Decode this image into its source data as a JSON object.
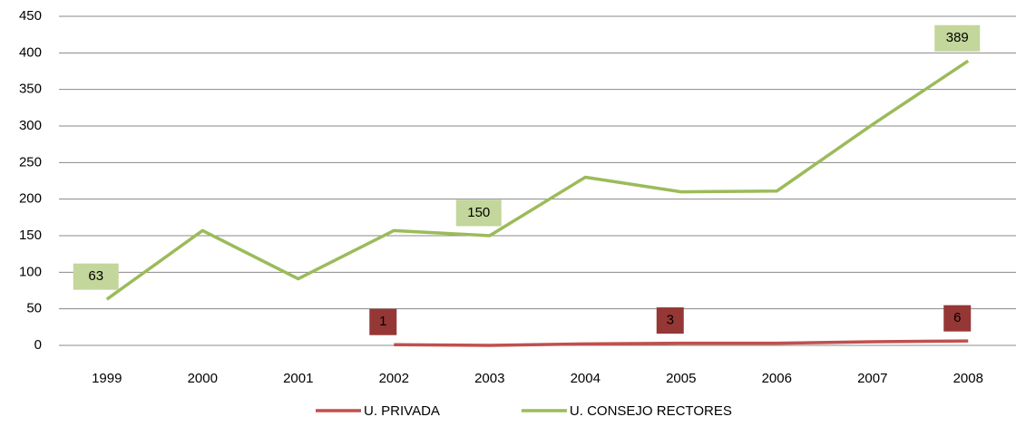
{
  "chart_data": {
    "type": "line",
    "categories": [
      "1999",
      "2000",
      "2001",
      "2002",
      "2003",
      "2004",
      "2005",
      "2006",
      "2007",
      "2008"
    ],
    "series": [
      {
        "name": "U. PRIVADA",
        "color": "#c0504d",
        "label_color": "#953735",
        "label_text_color": "#ffffff",
        "values": [
          null,
          null,
          null,
          1,
          0,
          2,
          3,
          3,
          5,
          6
        ],
        "data_labels": [
          3,
          6,
          9
        ]
      },
      {
        "name": "U. CONSEJO RECTORES",
        "color": "#9bbb59",
        "label_color": "#c3d69b",
        "label_text_color": "#000000",
        "values": [
          63,
          157,
          91,
          157,
          150,
          230,
          210,
          211,
          302,
          389
        ],
        "data_labels": [
          0,
          4,
          9
        ]
      }
    ],
    "ylim": [
      0,
      450
    ],
    "yticks": [
      0,
      50,
      100,
      150,
      200,
      250,
      300,
      350,
      400,
      450
    ],
    "grid": true,
    "legend": "bottom"
  }
}
